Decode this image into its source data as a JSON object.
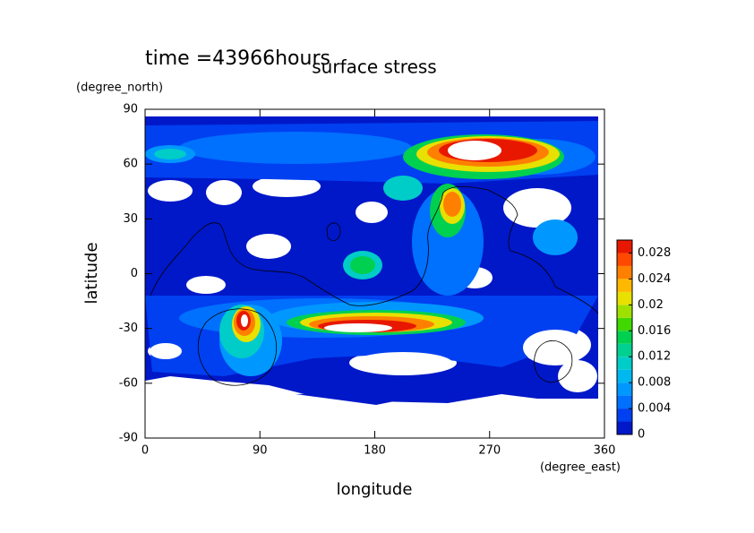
{
  "chart_data": {
    "type": "contour",
    "title": "surface stress",
    "subtitle": "time =43966hours",
    "x_label": "longitude",
    "x_units": "(degree_east)",
    "y_label": "latitude",
    "y_units": "(degree_north)",
    "xlim": [
      0,
      360
    ],
    "xticks": [
      0,
      90,
      180,
      270,
      360
    ],
    "ylim": [
      -90,
      90
    ],
    "yticks": [
      -90,
      -60,
      -30,
      0,
      30,
      60,
      90
    ],
    "colorbar": {
      "levels": [
        0,
        0.002,
        0.004,
        0.006,
        0.008,
        0.01,
        0.012,
        0.014,
        0.016,
        0.018,
        0.02,
        0.022,
        0.024,
        0.026,
        0.028,
        0.03
      ],
      "colors": [
        "#0018c8",
        "#0040f0",
        "#0070ff",
        "#0098ff",
        "#00b8f0",
        "#00ccc8",
        "#00d090",
        "#00d050",
        "#40d800",
        "#a0e000",
        "#e8e000",
        "#ffb800",
        "#ff8000",
        "#ff4800",
        "#e81800"
      ],
      "ticks": [
        0,
        0.004,
        0.008,
        0.012,
        0.016,
        0.02,
        0.024,
        0.028
      ]
    }
  }
}
